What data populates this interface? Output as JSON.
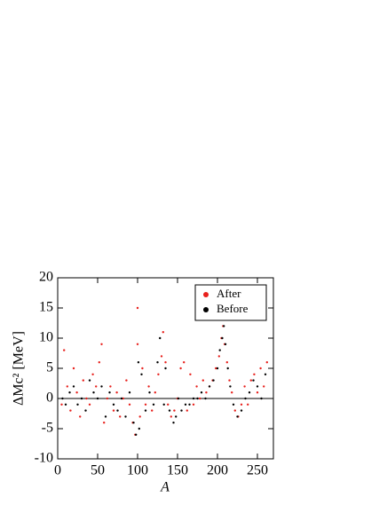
{
  "chart_data": {
    "type": "scatter",
    "xlabel": "A",
    "ylabel": "ΔMc² [MeV]",
    "xlim": [
      0,
      270
    ],
    "xticks": [
      0,
      50,
      100,
      150,
      200,
      250
    ],
    "ylim": [
      -10,
      20
    ],
    "yticks": [
      -10,
      -5,
      0,
      5,
      10,
      15,
      20
    ],
    "reference_line": 0,
    "legend": "upper right",
    "series": [
      {
        "name": "After",
        "color": "#e8201c",
        "x": [
          5,
          8,
          12,
          16,
          20,
          24,
          28,
          32,
          36,
          40,
          44,
          48,
          52,
          55,
          58,
          62,
          66,
          70,
          74,
          78,
          82,
          86,
          90,
          94,
          97,
          100,
          100,
          103,
          106,
          110,
          114,
          118,
          122,
          126,
          130,
          132,
          135,
          138,
          142,
          146,
          150,
          154,
          158,
          162,
          166,
          170,
          174,
          178,
          182,
          186,
          190,
          194,
          198,
          202,
          205,
          207,
          209,
          212,
          215,
          218,
          222,
          226,
          230,
          234,
          238,
          242,
          246,
          250,
          254,
          258,
          262
        ],
        "y": [
          -1,
          8,
          2,
          -2,
          5,
          1,
          -3,
          3,
          0,
          -1,
          4,
          2,
          6,
          9,
          -4,
          0,
          2,
          -2,
          1,
          -3,
          0,
          3,
          -1,
          -4,
          -6,
          15,
          9,
          -3,
          5,
          -1,
          2,
          -2,
          1,
          4,
          7,
          11,
          6,
          -1,
          -3,
          -2,
          0,
          5,
          6,
          -2,
          4,
          -1,
          2,
          0,
          3,
          1,
          2,
          3,
          5,
          7,
          10,
          12,
          9,
          6,
          3,
          1,
          -2,
          -3,
          -1,
          2,
          -1,
          3,
          4,
          1,
          5,
          2,
          6
        ]
      },
      {
        "name": "Before",
        "color": "#000000",
        "x": [
          6,
          10,
          15,
          20,
          25,
          30,
          35,
          40,
          45,
          50,
          55,
          60,
          65,
          70,
          75,
          80,
          85,
          90,
          95,
          98,
          101,
          102,
          105,
          110,
          115,
          120,
          125,
          128,
          133,
          135,
          140,
          145,
          148,
          151,
          155,
          160,
          165,
          170,
          175,
          180,
          185,
          190,
          195,
          200,
          203,
          206,
          208,
          210,
          213,
          216,
          220,
          225,
          230,
          235,
          240,
          245,
          250,
          255,
          260
        ],
        "y": [
          0,
          -1,
          1,
          2,
          -1,
          0,
          -2,
          3,
          1,
          0,
          2,
          -3,
          1,
          -1,
          -2,
          0,
          -3,
          1,
          -4,
          -6,
          6,
          -5,
          4,
          -2,
          1,
          -1,
          6,
          10,
          -1,
          5,
          -2,
          -4,
          -3,
          0,
          -2,
          -1,
          -1,
          0,
          0,
          1,
          0,
          2,
          3,
          5,
          8,
          10,
          12,
          9,
          5,
          2,
          -1,
          -3,
          -2,
          0,
          1,
          3,
          2,
          0,
          4
        ]
      }
    ]
  }
}
